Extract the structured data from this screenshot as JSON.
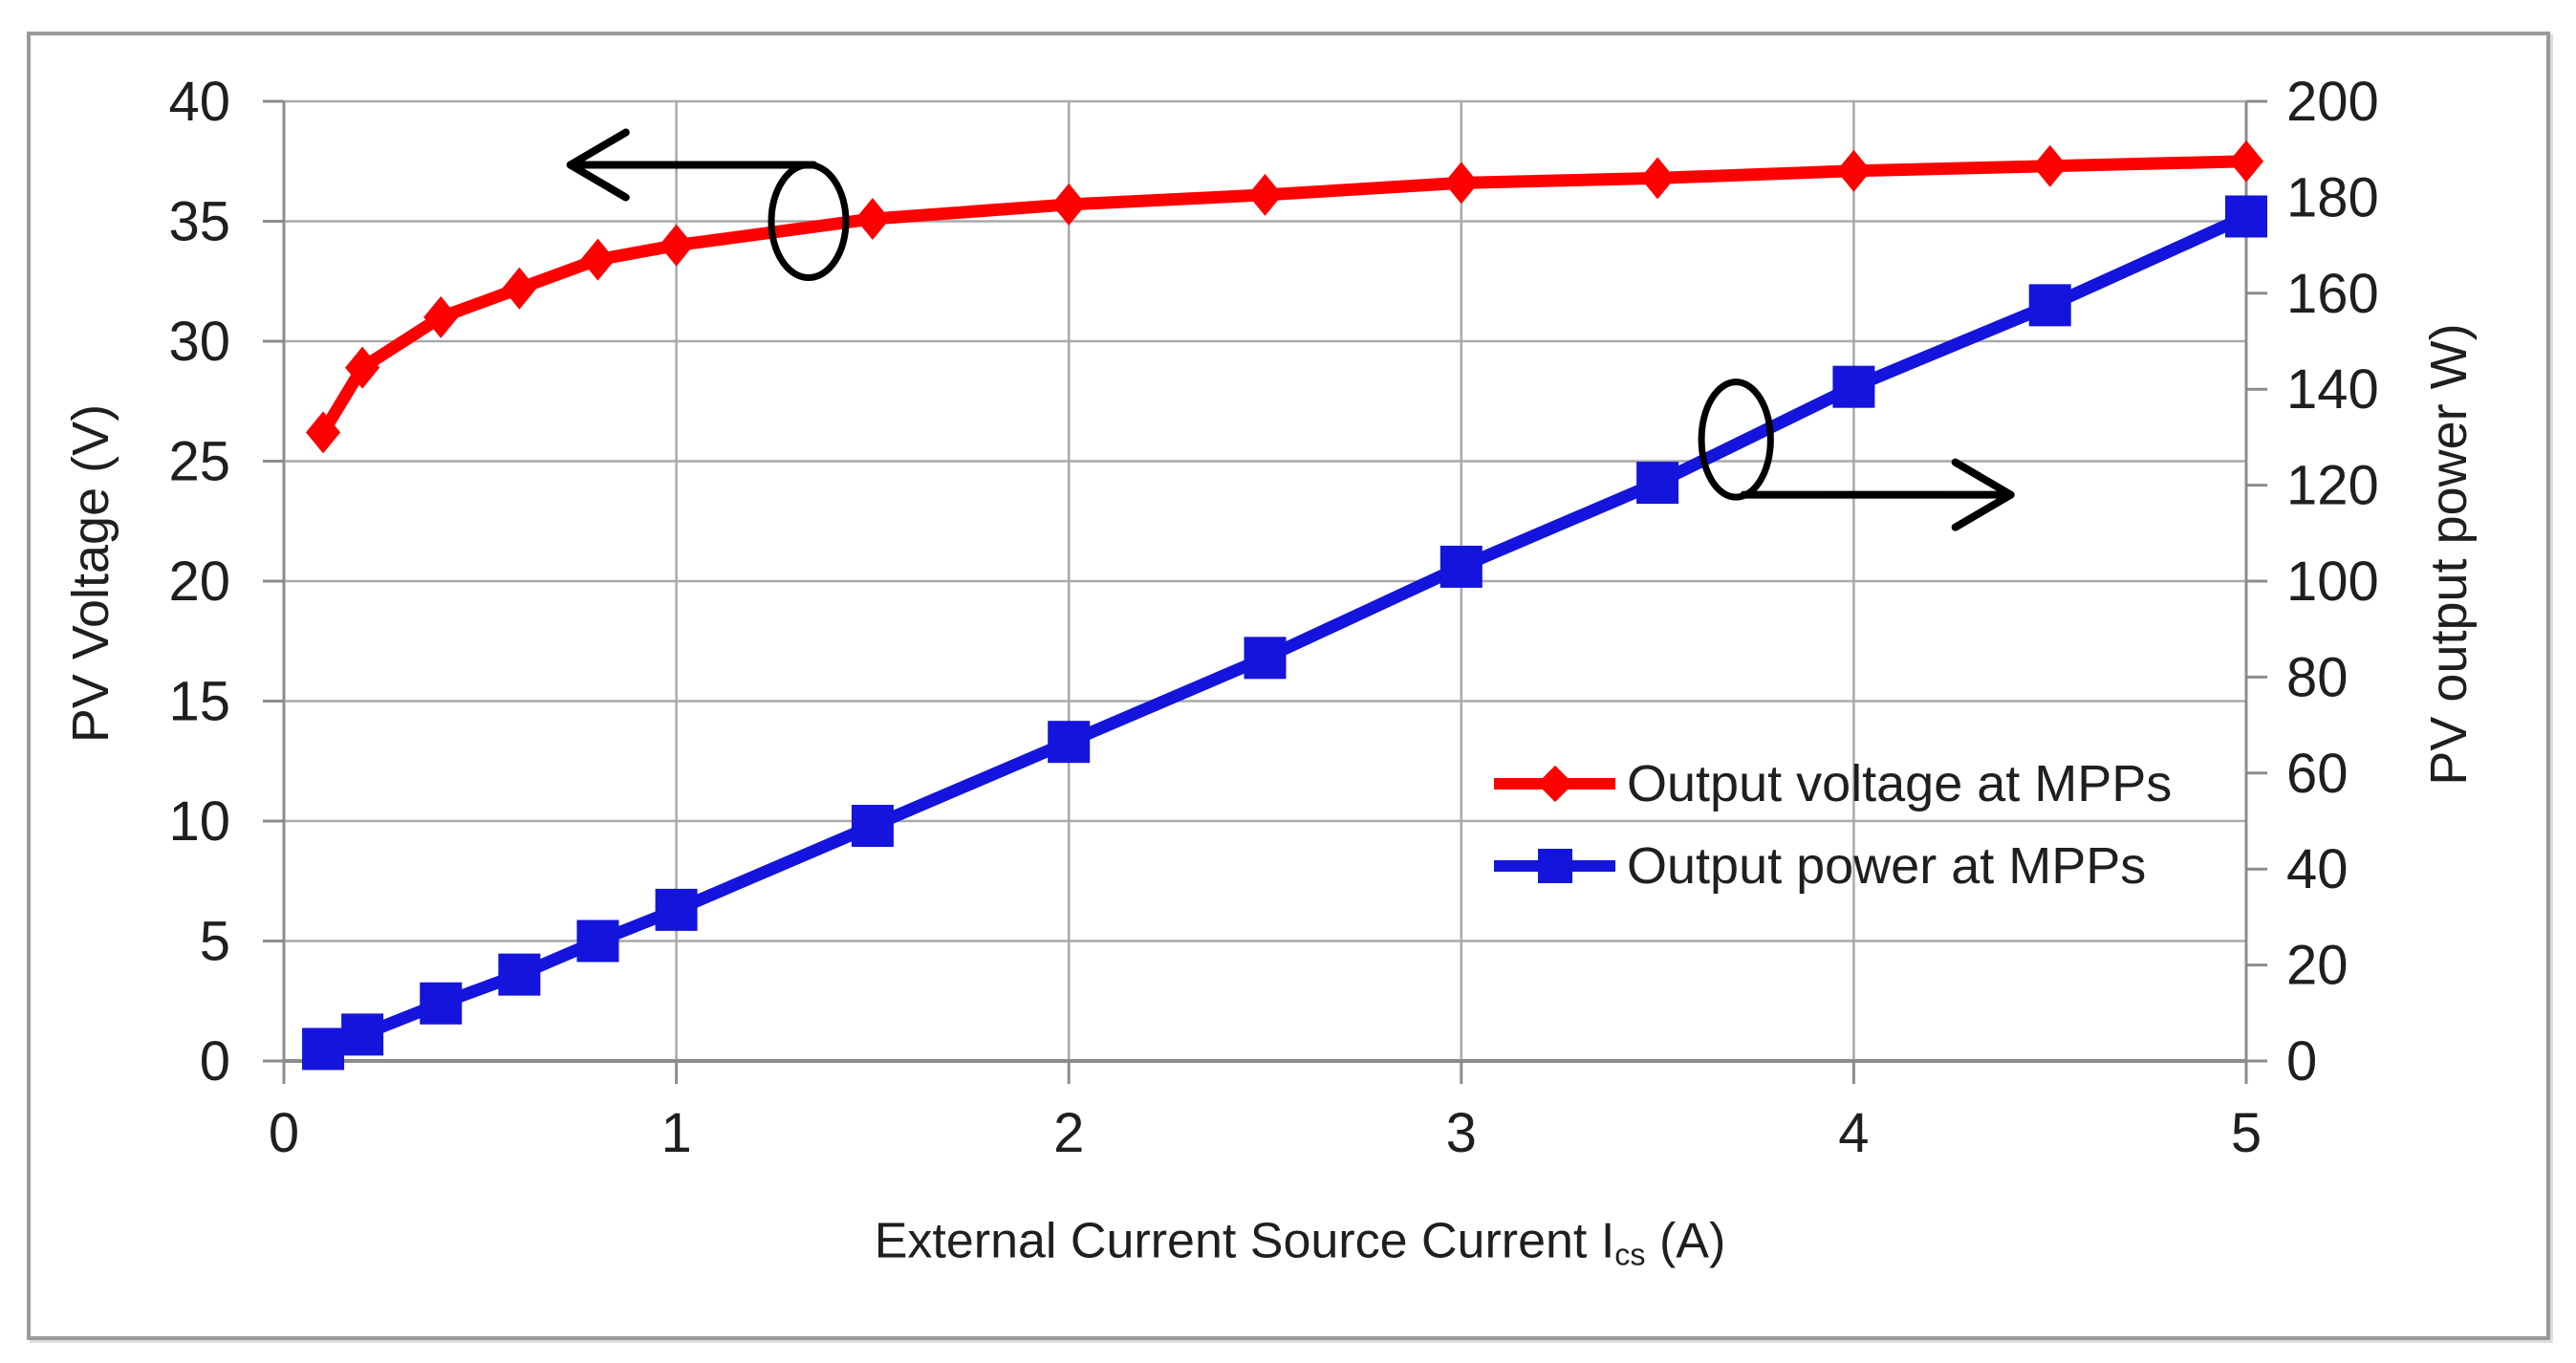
{
  "chart_data": {
    "type": "line",
    "title": "",
    "x": [
      0.1,
      0.2,
      0.4,
      0.6,
      0.8,
      1.0,
      1.5,
      2.0,
      2.5,
      3.0,
      3.5,
      4.0,
      4.5,
      5.0
    ],
    "series": [
      {
        "name": "Output voltage at MPPs",
        "axis": "left",
        "color": "#ff0000",
        "marker": "diamond",
        "values": [
          26.2,
          28.9,
          31.0,
          32.2,
          33.4,
          34.0,
          35.1,
          35.7,
          36.1,
          36.6,
          36.8,
          37.1,
          37.3,
          37.5
        ]
      },
      {
        "name": "Output power at MPPs",
        "axis": "right",
        "color": "#1414dc",
        "marker": "square",
        "values": [
          2.5,
          5.5,
          12.0,
          18.0,
          25.0,
          31.5,
          49.0,
          66.5,
          84.0,
          103.0,
          120.5,
          140.5,
          157.5,
          176.0
        ]
      }
    ],
    "xlabel": {
      "prefix": "External Current Source Current I",
      "sub": "cs",
      "suffix": " (A)"
    },
    "ylabel_left": "PV Voltage (V)",
    "ylabel_right": "PV output power W)",
    "xlim": [
      0,
      5
    ],
    "ylim_left": [
      0,
      40
    ],
    "ylim_right": [
      0,
      200
    ],
    "x_ticks": [
      0,
      1,
      2,
      3,
      4,
      5
    ],
    "y_left_ticks": [
      0,
      5,
      10,
      15,
      20,
      25,
      30,
      35,
      40
    ],
    "y_right_ticks": [
      0,
      20,
      40,
      60,
      80,
      100,
      120,
      140,
      160,
      180,
      200
    ],
    "grid": true,
    "legend_position": "middle-right",
    "annotations": {
      "voltage_ellipse": {
        "cx_a": 1.337,
        "cy_v": 35.0,
        "rx_a": 0.095,
        "ry_v": 2.35
      },
      "voltage_arrow": {
        "y_v": 37.35,
        "x_from_a": 1.35,
        "x_to_a": 0.73,
        "direction": "left"
      },
      "power_ellipse": {
        "cx_a": 3.7,
        "cy_w": 129.5,
        "rx_a": 0.088,
        "ry_w": 12.0
      },
      "power_arrow": {
        "y_w": 118.0,
        "x_from_a": 3.72,
        "x_to_a": 4.4,
        "direction": "right"
      }
    },
    "colors": {
      "gridline": "#a9a9a9",
      "axis": "#8c8c8c",
      "text": "#1f1f1f",
      "annotation": "#000000",
      "frame_border": "#9a9a9a",
      "background": "#ffffff"
    }
  },
  "legend": {
    "items": [
      {
        "label": "Output voltage at MPPs"
      },
      {
        "label": "Output power at MPPs"
      }
    ]
  }
}
